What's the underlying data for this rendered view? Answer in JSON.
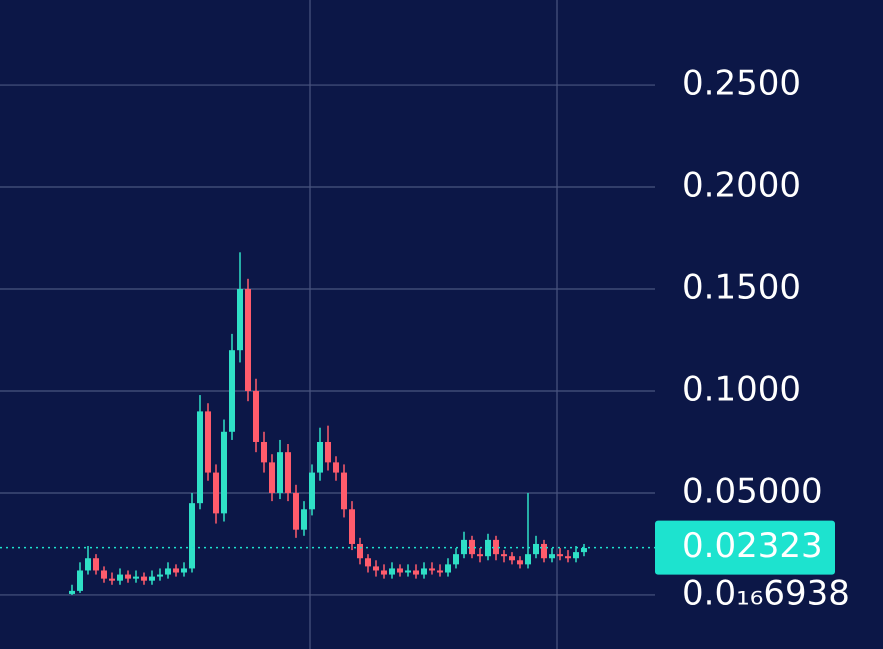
{
  "chart_data": {
    "type": "candlestick",
    "up_color": "#2fe0c6",
    "down_color": "#ff5c6c",
    "ylim": [
      -0.0265,
      0.2917
    ],
    "yticks": [
      {
        "value": 6.938e-17,
        "label": "0.0₁₆6938"
      },
      {
        "value": 0.05,
        "label": "0.05000"
      },
      {
        "value": 0.1,
        "label": "0.1000"
      },
      {
        "value": 0.15,
        "label": "0.1500"
      },
      {
        "value": 0.2,
        "label": "0.2000"
      },
      {
        "value": 0.25,
        "label": "0.2500"
      }
    ],
    "grid": true,
    "last_price": 0.02323,
    "last_price_color": "#1de3cf",
    "open": [
      0.0005,
      0.002,
      0.012,
      0.018,
      0.012,
      0.008,
      0.007,
      0.01,
      0.008,
      0.009,
      0.007,
      0.009,
      0.01,
      0.013,
      0.011,
      0.013,
      0.045,
      0.09,
      0.06,
      0.04,
      0.08,
      0.12,
      0.15,
      0.1,
      0.075,
      0.065,
      0.05,
      0.07,
      0.05,
      0.032,
      0.042,
      0.06,
      0.075,
      0.065,
      0.06,
      0.042,
      0.025,
      0.018,
      0.014,
      0.012,
      0.01,
      0.013,
      0.011,
      0.012,
      0.01,
      0.013,
      0.012,
      0.011,
      0.015,
      0.02,
      0.027,
      0.02,
      0.019,
      0.027,
      0.02,
      0.019,
      0.017,
      0.015,
      0.02,
      0.025,
      0.018,
      0.02,
      0.019,
      0.018,
      0.021
    ],
    "high": [
      0.005,
      0.016,
      0.024,
      0.02,
      0.014,
      0.011,
      0.013,
      0.012,
      0.012,
      0.011,
      0.012,
      0.013,
      0.016,
      0.015,
      0.016,
      0.05,
      0.098,
      0.094,
      0.064,
      0.086,
      0.128,
      0.168,
      0.155,
      0.106,
      0.08,
      0.069,
      0.076,
      0.074,
      0.054,
      0.046,
      0.064,
      0.082,
      0.083,
      0.068,
      0.064,
      0.046,
      0.028,
      0.02,
      0.017,
      0.015,
      0.016,
      0.015,
      0.015,
      0.015,
      0.016,
      0.016,
      0.015,
      0.018,
      0.023,
      0.031,
      0.029,
      0.023,
      0.03,
      0.029,
      0.022,
      0.021,
      0.019,
      0.05,
      0.029,
      0.027,
      0.023,
      0.023,
      0.022,
      0.024,
      0.025
    ],
    "low": [
      0.0,
      0.001,
      0.01,
      0.01,
      0.006,
      0.005,
      0.005,
      0.006,
      0.006,
      0.005,
      0.005,
      0.007,
      0.008,
      0.009,
      0.009,
      0.011,
      0.042,
      0.056,
      0.035,
      0.036,
      0.076,
      0.114,
      0.095,
      0.07,
      0.06,
      0.046,
      0.047,
      0.046,
      0.028,
      0.029,
      0.039,
      0.056,
      0.061,
      0.056,
      0.038,
      0.022,
      0.015,
      0.011,
      0.009,
      0.008,
      0.008,
      0.009,
      0.009,
      0.008,
      0.008,
      0.01,
      0.009,
      0.009,
      0.013,
      0.018,
      0.018,
      0.016,
      0.017,
      0.017,
      0.016,
      0.015,
      0.013,
      0.013,
      0.018,
      0.016,
      0.016,
      0.017,
      0.016,
      0.016,
      0.019
    ],
    "close": [
      0.002,
      0.012,
      0.018,
      0.012,
      0.008,
      0.007,
      0.01,
      0.008,
      0.009,
      0.007,
      0.009,
      0.01,
      0.013,
      0.011,
      0.013,
      0.045,
      0.09,
      0.06,
      0.04,
      0.08,
      0.12,
      0.15,
      0.1,
      0.075,
      0.065,
      0.05,
      0.07,
      0.05,
      0.032,
      0.042,
      0.06,
      0.075,
      0.065,
      0.06,
      0.042,
      0.025,
      0.018,
      0.014,
      0.012,
      0.01,
      0.013,
      0.011,
      0.012,
      0.01,
      0.013,
      0.012,
      0.011,
      0.015,
      0.02,
      0.027,
      0.02,
      0.019,
      0.027,
      0.02,
      0.019,
      0.017,
      0.015,
      0.02,
      0.025,
      0.018,
      0.02,
      0.019,
      0.018,
      0.021,
      0.023
    ]
  }
}
